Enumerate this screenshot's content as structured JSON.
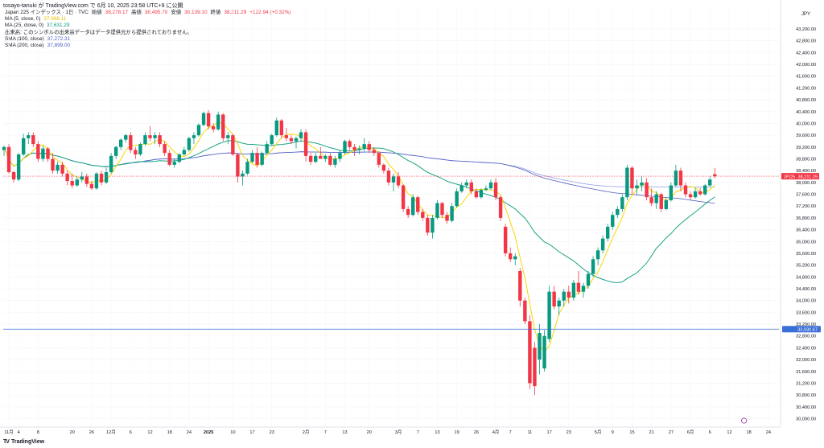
{
  "header": {
    "publish_line": "tosayo-tanuki が TradingView.com で 6月 10, 2025 23:58 UTC+9 に公開"
  },
  "legend": {
    "symbol": "Japan 225 インデックス · 1日 · TVC",
    "open_label": "始値",
    "open": "38,278.17",
    "high_label": "高値",
    "high": "38,495.70",
    "low_label": "安値",
    "low": "38,139.10",
    "close_label": "終値",
    "close": "38,211.29",
    "change": "+122.94 (+0.32%)",
    "ma5_label": "MA (5, close, 0)",
    "ma5_value": "37,968.11",
    "ma25_label": "MA (25, close, 0)",
    "ma25_value": "37,631.29",
    "notice": "出来高: このシンボルの出来高データはデータ提供元から提供されておりません。",
    "sma100_label": "SMA (100, close)",
    "sma100_value": "37,272.31",
    "sma200_label": "SMA (200, close)",
    "sma200_value": "37,899.00"
  },
  "branding": {
    "logo": "TV",
    "name": "TradingView"
  },
  "colors": {
    "up": "#089981",
    "down": "#f23645",
    "ma5": "#f5d800",
    "ma25": "#1aa383",
    "sma100": "#4d5cc4",
    "sma200": "#9aa0e8",
    "hline": "#3b6fd8",
    "last_price_bg": "#f23645",
    "hline_label_bg": "#3b6fd8"
  },
  "chart_data": {
    "type": "candlestick",
    "currency": "JPY",
    "ylim": [
      30000,
      43500
    ],
    "y_ticks": [
      "43,200.00",
      "42,800.00",
      "42,400.00",
      "42,000.00",
      "41,600.00",
      "41,200.00",
      "40,800.00",
      "40,400.00",
      "40,000.00",
      "39,600.00",
      "39,200.00",
      "38,800.00",
      "38,400.00",
      "38,000.00",
      "37,600.00",
      "37,200.00",
      "36,800.00",
      "36,400.00",
      "36,000.00",
      "35,600.00",
      "35,200.00",
      "34,800.00",
      "34,400.00",
      "34,000.00",
      "33,600.00",
      "33,200.00",
      "32,800.00",
      "32,400.00",
      "32,000.00",
      "31,600.00",
      "31,200.00",
      "30,800.00",
      "30,400.00",
      "30,000.00"
    ],
    "x_ticks": [
      {
        "label": "11月",
        "bar": 1
      },
      {
        "label": "4",
        "bar": 3
      },
      {
        "label": "8",
        "bar": 7
      },
      {
        "label": "20",
        "bar": 14
      },
      {
        "label": "26",
        "bar": 18
      },
      {
        "label": "12月",
        "bar": 22
      },
      {
        "label": "6",
        "bar": 26
      },
      {
        "label": "12",
        "bar": 30
      },
      {
        "label": "18",
        "bar": 34
      },
      {
        "label": "24",
        "bar": 38
      },
      {
        "label": "2025",
        "bar": 42
      },
      {
        "label": "10",
        "bar": 47
      },
      {
        "label": "17",
        "bar": 51
      },
      {
        "label": "23",
        "bar": 55
      },
      {
        "label": "2月",
        "bar": 62
      },
      {
        "label": "7",
        "bar": 66
      },
      {
        "label": "13",
        "bar": 70
      },
      {
        "label": "20",
        "bar": 75
      },
      {
        "label": "3月",
        "bar": 81
      },
      {
        "label": "7",
        "bar": 85
      },
      {
        "label": "13",
        "bar": 89
      },
      {
        "label": "19",
        "bar": 93
      },
      {
        "label": "26",
        "bar": 97
      },
      {
        "label": "4月",
        "bar": 101
      },
      {
        "label": "7",
        "bar": 104
      },
      {
        "label": "11",
        "bar": 108
      },
      {
        "label": "17",
        "bar": 112
      },
      {
        "label": "23",
        "bar": 116
      },
      {
        "label": "5月",
        "bar": 122
      },
      {
        "label": "9",
        "bar": 125
      },
      {
        "label": "15",
        "bar": 129
      },
      {
        "label": "21",
        "bar": 133
      },
      {
        "label": "27",
        "bar": 137
      },
      {
        "label": "6月",
        "bar": 141
      },
      {
        "label": "6",
        "bar": 145
      },
      {
        "label": "12",
        "bar": 149
      },
      {
        "label": "18",
        "bar": 153
      },
      {
        "label": "24",
        "bar": 157
      }
    ],
    "last_price": {
      "symbol": "JP225",
      "value": 38211.29,
      "label": "38,211.29"
    },
    "horizontal_line": {
      "value": 33030.67,
      "label": "33,030.67"
    },
    "ohlc": [
      [
        39100,
        39250,
        38900,
        39200
      ],
      [
        39200,
        39300,
        38300,
        38350
      ],
      [
        38350,
        38400,
        38000,
        38100
      ],
      [
        38100,
        39000,
        38050,
        38950
      ],
      [
        38950,
        39650,
        38900,
        39500
      ],
      [
        39500,
        39700,
        39300,
        39600
      ],
      [
        39600,
        39700,
        39200,
        39300
      ],
      [
        39300,
        39400,
        38700,
        38800
      ],
      [
        38800,
        39250,
        38700,
        39150
      ],
      [
        39150,
        39200,
        38700,
        38800
      ],
      [
        38800,
        39000,
        38300,
        38400
      ],
      [
        38400,
        38700,
        38300,
        38600
      ],
      [
        38600,
        38700,
        38200,
        38300
      ],
      [
        38300,
        38400,
        37900,
        38050
      ],
      [
        38050,
        38300,
        37800,
        37900
      ],
      [
        37900,
        38200,
        37850,
        38100
      ],
      [
        38100,
        38350,
        38000,
        38200
      ],
      [
        38200,
        38300,
        37850,
        37950
      ],
      [
        37950,
        38050,
        37750,
        37800
      ],
      [
        37800,
        38350,
        37750,
        38300
      ],
      [
        38300,
        38400,
        37900,
        38000
      ],
      [
        38000,
        38500,
        37950,
        38350
      ],
      [
        38350,
        39000,
        38300,
        38900
      ],
      [
        38900,
        39250,
        38800,
        39200
      ],
      [
        39200,
        39500,
        39100,
        39450
      ],
      [
        39450,
        39650,
        39350,
        39600
      ],
      [
        39600,
        39700,
        39000,
        39100
      ],
      [
        39100,
        39200,
        38800,
        38950
      ],
      [
        38950,
        39350,
        38900,
        39300
      ],
      [
        39300,
        39700,
        39250,
        39600
      ],
      [
        39600,
        39900,
        39400,
        39500
      ],
      [
        39500,
        39700,
        39300,
        39600
      ],
      [
        39600,
        39700,
        39200,
        39300
      ],
      [
        39300,
        39400,
        38900,
        39000
      ],
      [
        39000,
        39100,
        38550,
        38600
      ],
      [
        38600,
        38800,
        38500,
        38700
      ],
      [
        38700,
        39000,
        38650,
        38950
      ],
      [
        38950,
        39200,
        38900,
        39100
      ],
      [
        39100,
        39550,
        39050,
        39500
      ],
      [
        39500,
        39700,
        39300,
        39600
      ],
      [
        39600,
        40000,
        39550,
        39950
      ],
      [
        39950,
        40400,
        39900,
        40350
      ],
      [
        40350,
        40450,
        39800,
        39900
      ],
      [
        39900,
        40000,
        39700,
        39800
      ],
      [
        39800,
        40400,
        39750,
        40300
      ],
      [
        40300,
        40350,
        39400,
        39500
      ],
      [
        39500,
        39700,
        39300,
        39600
      ],
      [
        39600,
        39650,
        38900,
        38950
      ],
      [
        38950,
        39000,
        38000,
        38200
      ],
      [
        38200,
        38400,
        37900,
        38300
      ],
      [
        38300,
        38800,
        38250,
        38700
      ],
      [
        38700,
        39100,
        38650,
        39000
      ],
      [
        39000,
        39200,
        38500,
        38600
      ],
      [
        38600,
        39050,
        38550,
        39000
      ],
      [
        39000,
        39400,
        38950,
        39300
      ],
      [
        39300,
        39650,
        39250,
        39600
      ],
      [
        39600,
        40200,
        39550,
        40100
      ],
      [
        40100,
        40150,
        39500,
        39600
      ],
      [
        39600,
        39850,
        39400,
        39500
      ],
      [
        39500,
        39600,
        39300,
        39400
      ],
      [
        39400,
        39550,
        39150,
        39500
      ],
      [
        39500,
        39800,
        39400,
        39700
      ],
      [
        39700,
        39800,
        38700,
        38900
      ],
      [
        38900,
        39000,
        38600,
        38700
      ],
      [
        38700,
        39000,
        38650,
        38900
      ],
      [
        38900,
        39200,
        38800,
        38800
      ],
      [
        38800,
        38950,
        38700,
        38900
      ],
      [
        38900,
        39000,
        38550,
        38600
      ],
      [
        38600,
        38900,
        38500,
        38800
      ],
      [
        38800,
        39100,
        38700,
        39000
      ],
      [
        39000,
        39450,
        38950,
        39400
      ],
      [
        39400,
        39450,
        39100,
        39200
      ],
      [
        39200,
        39300,
        38900,
        39100
      ],
      [
        39100,
        39250,
        38950,
        39150
      ],
      [
        39150,
        39500,
        39050,
        39300
      ],
      [
        39300,
        39400,
        39000,
        39100
      ],
      [
        39100,
        39200,
        38900,
        39000
      ],
      [
        39000,
        39050,
        38500,
        38600
      ],
      [
        38600,
        38650,
        38300,
        38400
      ],
      [
        38400,
        38500,
        37900,
        38000
      ],
      [
        38000,
        38300,
        37700,
        38200
      ],
      [
        38200,
        38350,
        37800,
        37900
      ],
      [
        37900,
        37950,
        37000,
        37100
      ],
      [
        37100,
        37200,
        36800,
        36900
      ],
      [
        36900,
        37600,
        36850,
        37500
      ],
      [
        37500,
        37550,
        36900,
        37000
      ],
      [
        37000,
        37100,
        36700,
        36800
      ],
      [
        36800,
        36900,
        36200,
        36300
      ],
      [
        36300,
        36900,
        36100,
        36800
      ],
      [
        36800,
        37400,
        36750,
        37300
      ],
      [
        37300,
        37350,
        36800,
        36900
      ],
      [
        36900,
        37000,
        36600,
        36700
      ],
      [
        36700,
        37300,
        36650,
        37200
      ],
      [
        37200,
        37800,
        37150,
        37700
      ],
      [
        37700,
        38000,
        37650,
        37900
      ],
      [
        37900,
        38100,
        37800,
        38000
      ],
      [
        38000,
        38100,
        37600,
        37700
      ],
      [
        37700,
        37800,
        37450,
        37500
      ],
      [
        37500,
        37800,
        37450,
        37750
      ],
      [
        37750,
        37900,
        37700,
        37800
      ],
      [
        37800,
        38100,
        37750,
        38000
      ],
      [
        38000,
        38150,
        37400,
        37500
      ],
      [
        37500,
        37550,
        36700,
        36800
      ],
      [
        36500,
        36600,
        35500,
        35600
      ],
      [
        35600,
        35800,
        35300,
        35400
      ],
      [
        35400,
        35600,
        35200,
        35500
      ],
      [
        35000,
        35100,
        33800,
        34000
      ],
      [
        34000,
        34100,
        33200,
        33300
      ],
      [
        33300,
        33500,
        31000,
        31200
      ],
      [
        32400,
        32600,
        30800,
        31100
      ],
      [
        32000,
        33200,
        31500,
        32900
      ],
      [
        31700,
        33000,
        31600,
        32800
      ],
      [
        32700,
        34500,
        32600,
        34300
      ],
      [
        34300,
        34500,
        33700,
        33800
      ],
      [
        33800,
        34100,
        33500,
        34000
      ],
      [
        34000,
        34400,
        33800,
        34300
      ],
      [
        34300,
        34500,
        33900,
        34100
      ],
      [
        34100,
        34700,
        34000,
        34600
      ],
      [
        34600,
        35000,
        34200,
        34300
      ],
      [
        34300,
        34600,
        34100,
        34500
      ],
      [
        34500,
        35000,
        34400,
        34900
      ],
      [
        34900,
        35500,
        34800,
        35400
      ],
      [
        35400,
        35800,
        35200,
        35700
      ],
      [
        35700,
        36200,
        35600,
        36100
      ],
      [
        36100,
        36600,
        36000,
        36500
      ],
      [
        36500,
        37000,
        36400,
        36900
      ],
      [
        36900,
        37200,
        36800,
        37100
      ],
      [
        37100,
        37600,
        37000,
        37500
      ],
      [
        37500,
        38600,
        37400,
        38500
      ],
      [
        38500,
        38550,
        37600,
        37800
      ],
      [
        37800,
        38100,
        37600,
        37900
      ],
      [
        37900,
        38200,
        37700,
        38000
      ],
      [
        38000,
        38150,
        37400,
        37500
      ],
      [
        37500,
        37800,
        37200,
        37300
      ],
      [
        37300,
        37700,
        37100,
        37600
      ],
      [
        37600,
        37650,
        37000,
        37100
      ],
      [
        37100,
        37500,
        37050,
        37400
      ],
      [
        37400,
        38000,
        37350,
        37900
      ],
      [
        37900,
        38600,
        37850,
        38400
      ],
      [
        38400,
        38500,
        37700,
        37900
      ],
      [
        37900,
        38000,
        37500,
        37600
      ],
      [
        37600,
        37700,
        37400,
        37500
      ],
      [
        37500,
        37800,
        37450,
        37700
      ],
      [
        37700,
        37800,
        37550,
        37600
      ],
      [
        37600,
        37950,
        37550,
        37900
      ],
      [
        37900,
        38200,
        37850,
        38100
      ],
      [
        38278.17,
        38495.7,
        38139.1,
        38211.29
      ]
    ]
  }
}
